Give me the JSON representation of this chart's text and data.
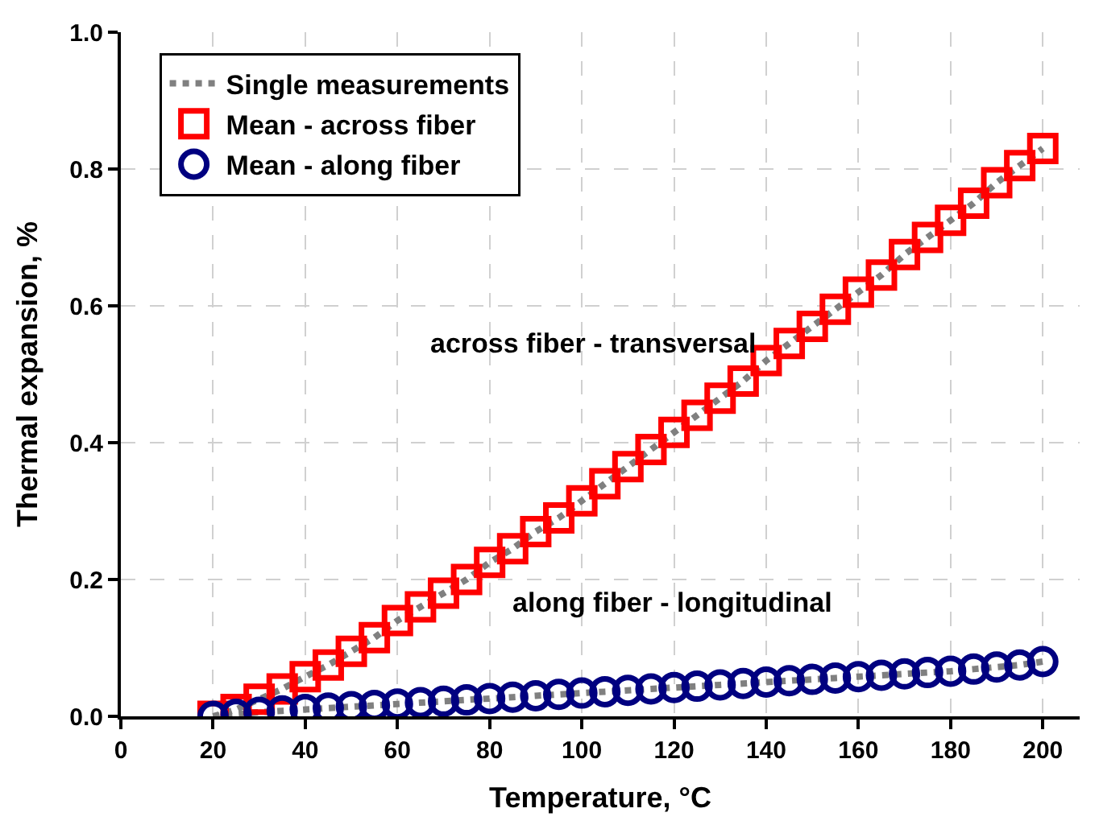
{
  "chart_data": {
    "type": "scatter",
    "xlabel": "Temperature, °C",
    "ylabel": "Thermal expansion, %",
    "x": [
      20,
      25,
      30,
      35,
      40,
      45,
      50,
      55,
      60,
      65,
      70,
      75,
      80,
      85,
      90,
      95,
      100,
      105,
      110,
      115,
      120,
      125,
      130,
      135,
      140,
      145,
      150,
      155,
      160,
      165,
      170,
      175,
      180,
      185,
      190,
      195,
      200
    ],
    "series": [
      {
        "name": "Single measurements",
        "type": "line",
        "line_style": "dotted",
        "marker": "none",
        "color": "#808080",
        "values": [
          0,
          0.01,
          0.025,
          0.04,
          0.058,
          0.075,
          0.095,
          0.115,
          0.14,
          0.16,
          0.18,
          0.2,
          0.225,
          0.245,
          0.27,
          0.29,
          0.315,
          0.34,
          0.365,
          0.39,
          0.415,
          0.44,
          0.465,
          0.49,
          0.52,
          0.545,
          0.57,
          0.595,
          0.62,
          0.645,
          0.675,
          0.7,
          0.725,
          0.75,
          0.78,
          0.805,
          0.83
        ]
      },
      {
        "type": "line",
        "line_style": "dotted",
        "marker": "none",
        "color": "#808080",
        "values": [
          0,
          0.003,
          0.006,
          0.008,
          0.01,
          0.012,
          0.014,
          0.016,
          0.018,
          0.02,
          0.022,
          0.024,
          0.026,
          0.028,
          0.03,
          0.032,
          0.034,
          0.036,
          0.038,
          0.04,
          0.042,
          0.044,
          0.046,
          0.048,
          0.05,
          0.052,
          0.054,
          0.056,
          0.058,
          0.06,
          0.062,
          0.064,
          0.066,
          0.069,
          0.072,
          0.075,
          0.08
        ]
      },
      {
        "name": "Mean - across fiber",
        "marker": "square",
        "color": "#ff0000",
        "values": [
          0,
          0.01,
          0.025,
          0.04,
          0.058,
          0.075,
          0.095,
          0.115,
          0.14,
          0.16,
          0.18,
          0.2,
          0.225,
          0.245,
          0.27,
          0.29,
          0.315,
          0.34,
          0.365,
          0.39,
          0.415,
          0.44,
          0.465,
          0.49,
          0.52,
          0.545,
          0.57,
          0.595,
          0.62,
          0.645,
          0.675,
          0.7,
          0.725,
          0.75,
          0.78,
          0.805,
          0.83
        ]
      },
      {
        "name": "Mean - along fiber",
        "marker": "circle",
        "color": "#000080",
        "values": [
          0,
          0.003,
          0.006,
          0.008,
          0.01,
          0.012,
          0.014,
          0.016,
          0.018,
          0.02,
          0.022,
          0.024,
          0.026,
          0.028,
          0.03,
          0.032,
          0.034,
          0.036,
          0.038,
          0.04,
          0.042,
          0.044,
          0.046,
          0.048,
          0.05,
          0.052,
          0.054,
          0.056,
          0.058,
          0.06,
          0.062,
          0.064,
          0.066,
          0.069,
          0.072,
          0.075,
          0.08
        ]
      }
    ],
    "annotations": [
      "across fiber - transversal",
      "along fiber - longitudinal"
    ],
    "xlim": [
      0,
      208
    ],
    "xticks": [
      0,
      20,
      40,
      60,
      80,
      100,
      120,
      140,
      160,
      180,
      200
    ],
    "ylim": [
      0,
      1
    ],
    "yticks": [
      {
        "value": 0,
        "label": "0.0"
      },
      0.2,
      0.4,
      0.6,
      0.8,
      {
        "value": 1,
        "label": "1.0"
      }
    ],
    "grid": true,
    "legend": "top left"
  }
}
